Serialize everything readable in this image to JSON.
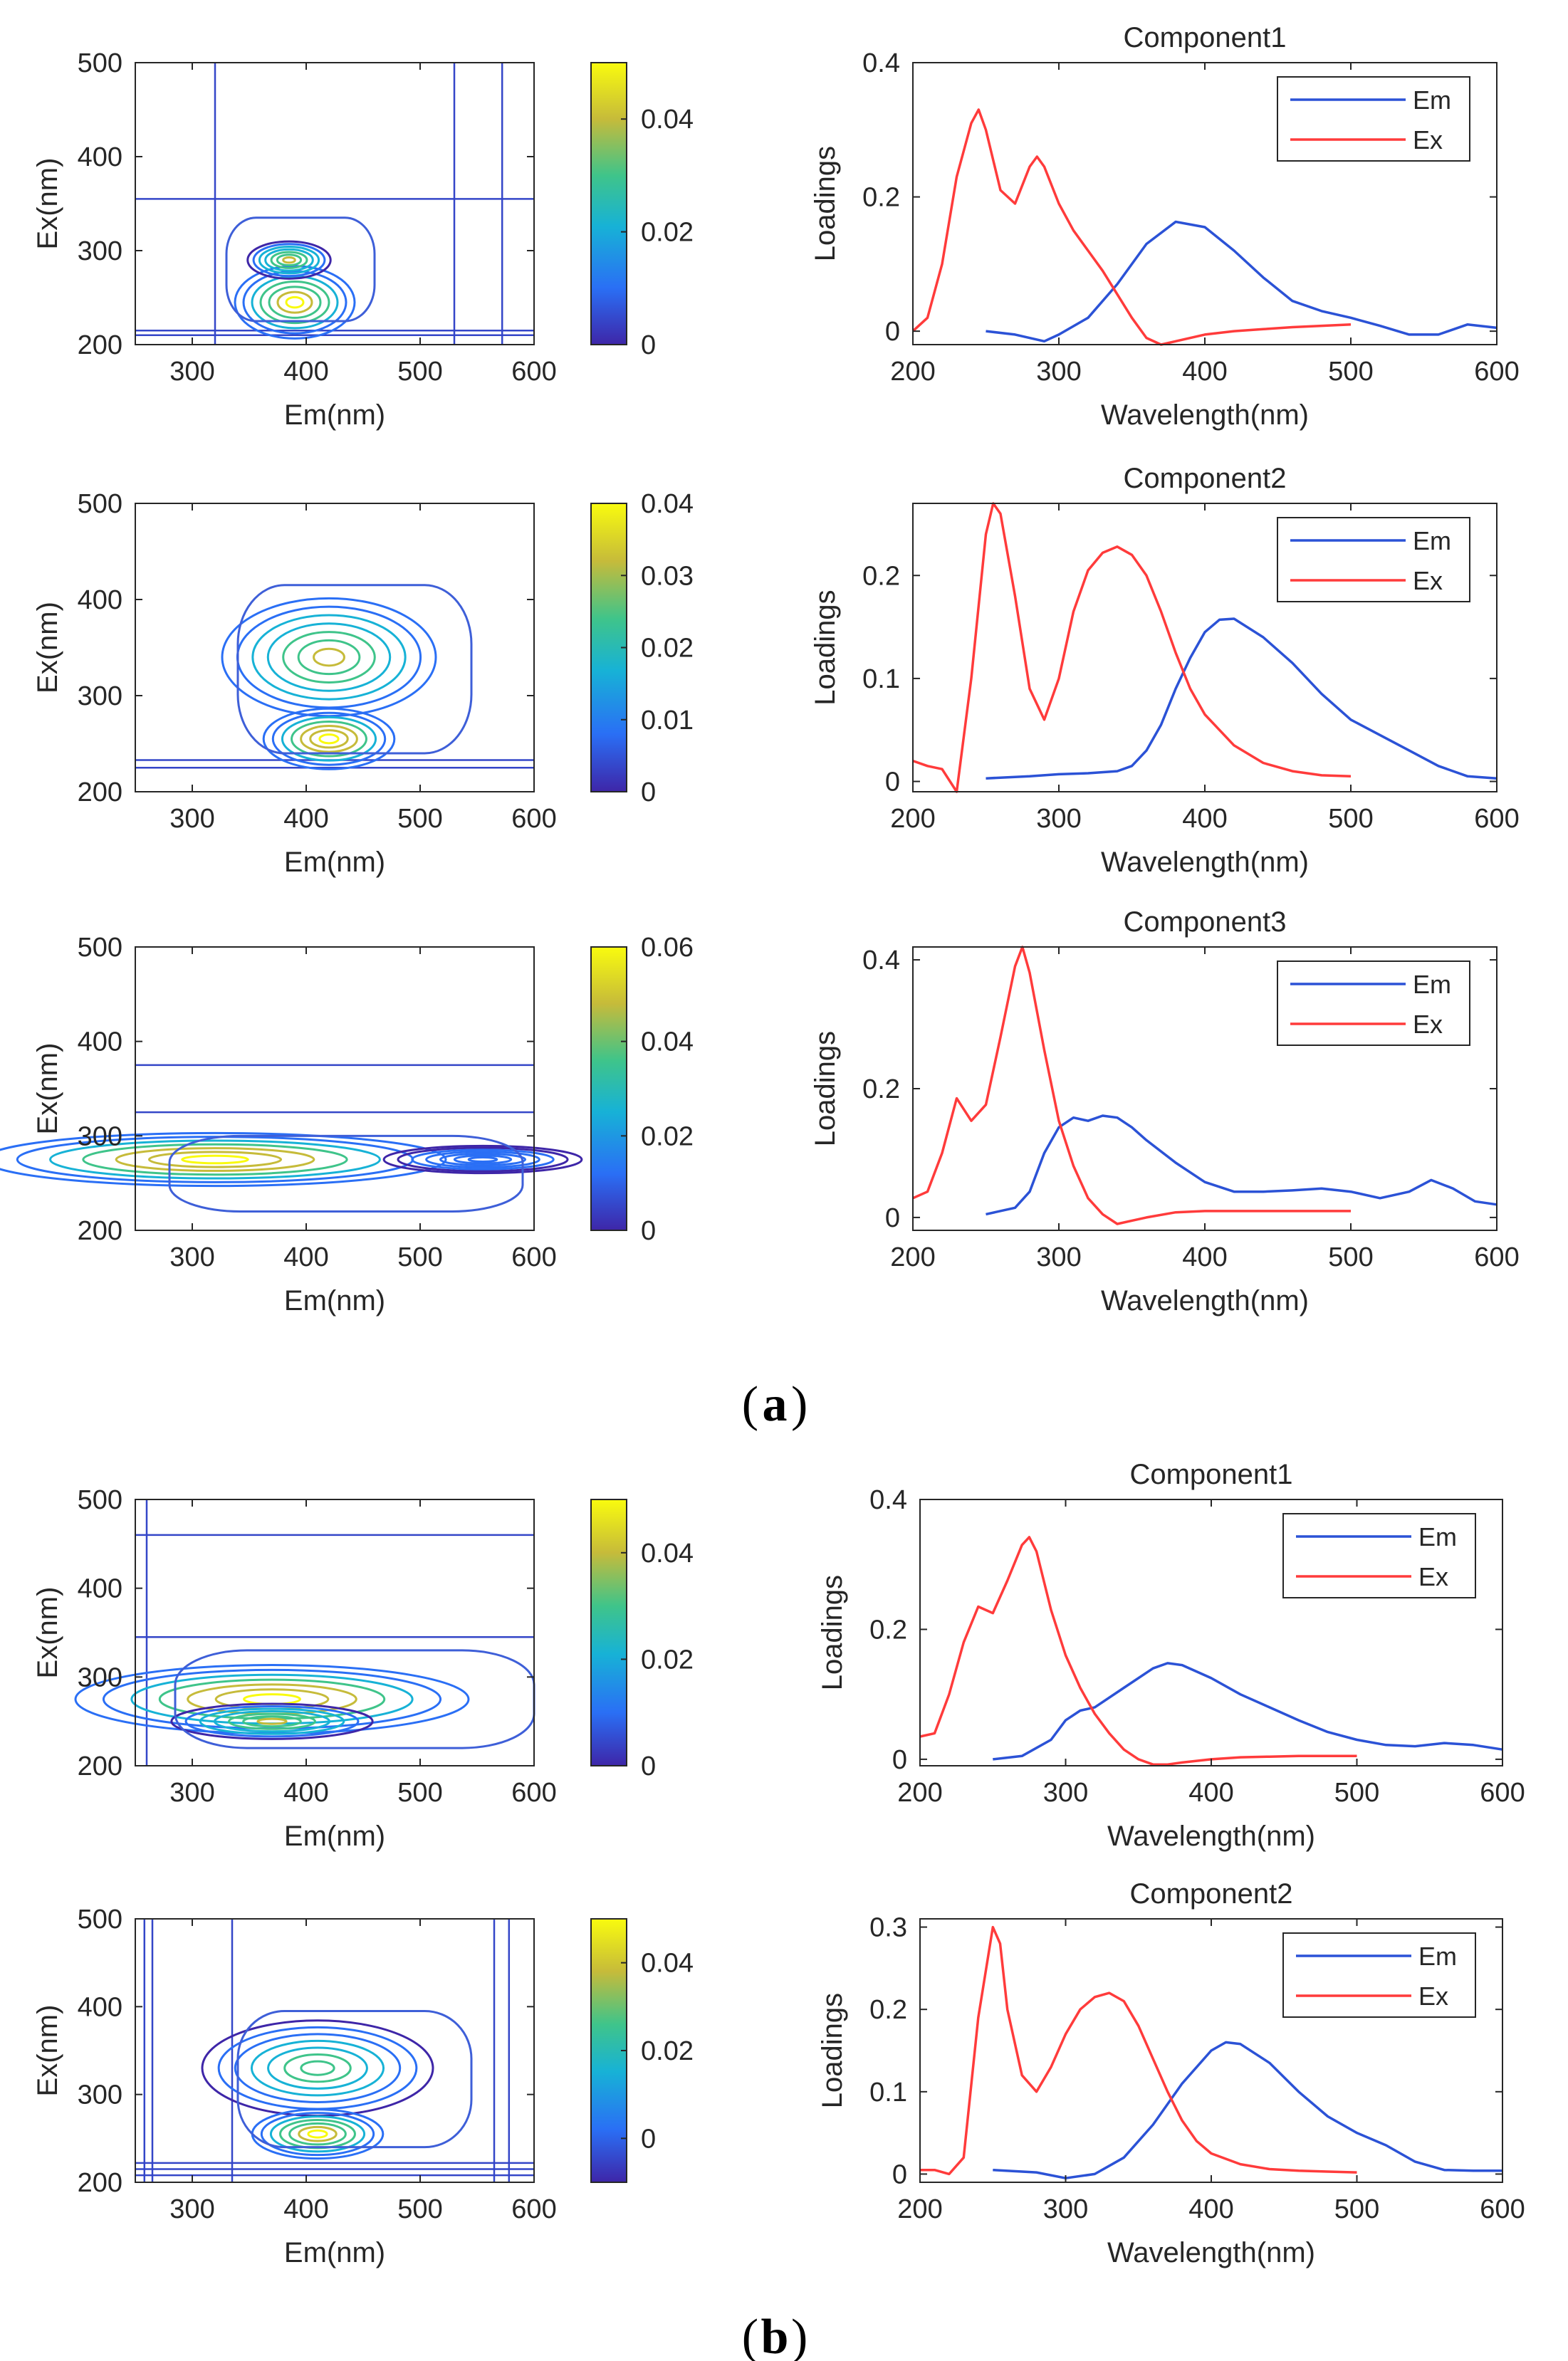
{
  "figure": {
    "labels": {
      "a": "a",
      "b": "b"
    },
    "colors": {
      "em": "#2b52d6",
      "ex": "#ff3b3b",
      "axis": "#262626",
      "cbar_stops": [
        "#3e26a8",
        "#2a6ff5",
        "#17b2d6",
        "#3fc48a",
        "#c6bb3a",
        "#f9fb0e"
      ]
    }
  },
  "chart_data": [
    {
      "type": "heatmap",
      "panel": "a",
      "row": 1,
      "xlabel": "Em(nm)",
      "ylabel": "Ex(nm)",
      "xlim": [
        250,
        600
      ],
      "ylim": [
        200,
        500
      ],
      "xticks": [
        300,
        400,
        500,
        600
      ],
      "yticks": [
        200,
        300,
        400,
        500
      ],
      "colorbar": {
        "range": [
          0,
          0.05
        ],
        "ticks": [
          0,
          0.02,
          0.04
        ]
      },
      "peaks": [
        {
          "em": 390,
          "ex": 245,
          "value": 0.045
        },
        {
          "em": 385,
          "ex": 290,
          "value": 0.035
        }
      ],
      "contour_extent": {
        "em": [
          330,
          460
        ],
        "ex": [
          225,
          335
        ]
      },
      "artifact_lines": {
        "h": [
          355,
          215,
          210
        ],
        "v": [
          320,
          530,
          572
        ]
      }
    },
    {
      "type": "line",
      "panel": "a",
      "row": 1,
      "title": "Component1",
      "xlabel": "Wavelength(nm)",
      "ylabel": "Loadings",
      "xlim": [
        200,
        600
      ],
      "ylim": [
        -0.02,
        0.4
      ],
      "xticks": [
        200,
        300,
        400,
        500,
        600
      ],
      "yticks": [
        0,
        0.2,
        0.4
      ],
      "ytick_labels": [
        "0",
        "0.2",
        "0.4"
      ],
      "legend": [
        "Em",
        "Ex"
      ],
      "legend_position": "top-right",
      "series": [
        {
          "name": "Em",
          "x": [
            250,
            270,
            290,
            300,
            320,
            340,
            360,
            380,
            400,
            420,
            440,
            460,
            480,
            500,
            520,
            540,
            560,
            580,
            600
          ],
          "y": [
            0,
            -0.005,
            -0.015,
            -0.005,
            0.02,
            0.07,
            0.13,
            0.163,
            0.155,
            0.12,
            0.08,
            0.045,
            0.03,
            0.02,
            0.008,
            -0.005,
            -0.005,
            0.01,
            0.005
          ]
        },
        {
          "name": "Ex",
          "x": [
            200,
            210,
            220,
            230,
            240,
            245,
            250,
            260,
            270,
            280,
            285,
            290,
            300,
            310,
            320,
            330,
            340,
            350,
            360,
            370,
            380,
            400,
            420,
            440,
            460,
            480,
            500
          ],
          "y": [
            0,
            0.02,
            0.1,
            0.23,
            0.31,
            0.33,
            0.3,
            0.21,
            0.19,
            0.245,
            0.26,
            0.245,
            0.19,
            0.15,
            0.12,
            0.09,
            0.055,
            0.02,
            -0.01,
            -0.02,
            -0.015,
            -0.005,
            0.0,
            0.003,
            0.006,
            0.008,
            0.01
          ]
        }
      ]
    },
    {
      "type": "heatmap",
      "panel": "a",
      "row": 2,
      "xlabel": "Em(nm)",
      "ylabel": "Ex(nm)",
      "xlim": [
        250,
        600
      ],
      "ylim": [
        200,
        500
      ],
      "xticks": [
        300,
        400,
        500,
        600
      ],
      "yticks": [
        200,
        300,
        400,
        500
      ],
      "colorbar": {
        "range": [
          0,
          0.04
        ],
        "ticks": [
          0,
          0.01,
          0.02,
          0.03,
          0.04
        ]
      },
      "peaks": [
        {
          "em": 420,
          "ex": 340,
          "value": 0.03
        },
        {
          "em": 420,
          "ex": 255,
          "value": 0.04
        }
      ],
      "contour_extent": {
        "em": [
          340,
          545
        ],
        "ex": [
          240,
          415
        ]
      },
      "artifact_lines": {
        "h": [
          233,
          225
        ],
        "v": []
      }
    },
    {
      "type": "line",
      "panel": "a",
      "row": 2,
      "title": "Component2",
      "xlabel": "Wavelength(nm)",
      "ylabel": "Loadings",
      "xlim": [
        200,
        600
      ],
      "ylim": [
        -0.01,
        0.27
      ],
      "xticks": [
        200,
        300,
        400,
        500,
        600
      ],
      "yticks": [
        0,
        0.1,
        0.2
      ],
      "ytick_labels": [
        "0",
        "0.1",
        "0.2"
      ],
      "legend": [
        "Em",
        "Ex"
      ],
      "legend_position": "top-right",
      "series": [
        {
          "name": "Em",
          "x": [
            250,
            280,
            300,
            320,
            340,
            350,
            360,
            370,
            380,
            390,
            400,
            410,
            420,
            440,
            460,
            480,
            500,
            520,
            540,
            560,
            580,
            600
          ],
          "y": [
            0.003,
            0.005,
            0.007,
            0.008,
            0.01,
            0.015,
            0.03,
            0.055,
            0.09,
            0.12,
            0.145,
            0.157,
            0.158,
            0.14,
            0.115,
            0.085,
            0.06,
            0.045,
            0.03,
            0.015,
            0.005,
            0.003
          ]
        },
        {
          "name": "Ex",
          "x": [
            200,
            210,
            220,
            230,
            240,
            250,
            255,
            260,
            270,
            280,
            290,
            300,
            310,
            320,
            330,
            340,
            350,
            360,
            370,
            380,
            390,
            400,
            420,
            440,
            460,
            480,
            500
          ],
          "y": [
            0.02,
            0.015,
            0.012,
            -0.01,
            0.1,
            0.24,
            0.27,
            0.26,
            0.18,
            0.09,
            0.06,
            0.1,
            0.165,
            0.205,
            0.222,
            0.228,
            0.22,
            0.2,
            0.165,
            0.125,
            0.09,
            0.065,
            0.035,
            0.018,
            0.01,
            0.006,
            0.005
          ]
        }
      ]
    },
    {
      "type": "heatmap",
      "panel": "a",
      "row": 3,
      "xlabel": "Em(nm)",
      "ylabel": "Ex(nm)",
      "xlim": [
        250,
        600
      ],
      "ylim": [
        200,
        500
      ],
      "xticks": [
        300,
        400,
        500,
        600
      ],
      "yticks": [
        200,
        300,
        400,
        500
      ],
      "colorbar": {
        "range": [
          0,
          0.06
        ],
        "ticks": [
          0,
          0.02,
          0.04,
          0.06
        ]
      },
      "peaks": [
        {
          "em": 320,
          "ex": 275,
          "value": 0.06
        },
        {
          "em": 555,
          "ex": 275,
          "value": 0.015
        }
      ],
      "contour_extent": {
        "em": [
          280,
          590
        ],
        "ex": [
          220,
          300
        ]
      },
      "artifact_lines": {
        "h": [
          375,
          325
        ],
        "v": []
      }
    },
    {
      "type": "line",
      "panel": "a",
      "row": 3,
      "title": "Component3",
      "xlabel": "Wavelength(nm)",
      "ylabel": "Loadings",
      "xlim": [
        200,
        600
      ],
      "ylim": [
        -0.02,
        0.42
      ],
      "xticks": [
        200,
        300,
        400,
        500,
        600
      ],
      "yticks": [
        0,
        0.2,
        0.4
      ],
      "ytick_labels": [
        "0",
        "0.2",
        "0.4"
      ],
      "legend": [
        "Em",
        "Ex"
      ],
      "legend_position": "top-right",
      "series": [
        {
          "name": "Em",
          "x": [
            250,
            270,
            280,
            290,
            300,
            310,
            320,
            330,
            340,
            350,
            360,
            380,
            400,
            420,
            440,
            460,
            480,
            500,
            520,
            540,
            555,
            570,
            585,
            600
          ],
          "y": [
            0.005,
            0.015,
            0.04,
            0.1,
            0.14,
            0.155,
            0.15,
            0.158,
            0.155,
            0.14,
            0.12,
            0.085,
            0.055,
            0.04,
            0.04,
            0.042,
            0.045,
            0.04,
            0.03,
            0.04,
            0.058,
            0.045,
            0.025,
            0.02
          ]
        },
        {
          "name": "Ex",
          "x": [
            200,
            210,
            220,
            230,
            240,
            250,
            260,
            270,
            275,
            280,
            290,
            300,
            310,
            320,
            330,
            340,
            350,
            360,
            380,
            400,
            420,
            440,
            460,
            480,
            500
          ],
          "y": [
            0.03,
            0.04,
            0.1,
            0.185,
            0.15,
            0.175,
            0.28,
            0.39,
            0.42,
            0.38,
            0.26,
            0.15,
            0.08,
            0.03,
            0.005,
            -0.01,
            -0.005,
            0.0,
            0.008,
            0.01,
            0.01,
            0.01,
            0.01,
            0.01,
            0.01
          ]
        }
      ]
    },
    {
      "type": "heatmap",
      "panel": "b",
      "row": 1,
      "xlabel": "Em(nm)",
      "ylabel": "Ex(nm)",
      "xlim": [
        250,
        600
      ],
      "ylim": [
        200,
        500
      ],
      "xticks": [
        300,
        400,
        500,
        600
      ],
      "yticks": [
        200,
        300,
        400,
        500
      ],
      "colorbar": {
        "range": [
          0,
          0.05
        ],
        "ticks": [
          0,
          0.02,
          0.04
        ]
      },
      "peaks": [
        {
          "em": 370,
          "ex": 275,
          "value": 0.05
        },
        {
          "em": 370,
          "ex": 250,
          "value": 0.035
        }
      ],
      "contour_extent": {
        "em": [
          285,
          600
        ],
        "ex": [
          220,
          330
        ]
      },
      "artifact_lines": {
        "h": [
          460,
          345
        ],
        "v": [
          260
        ]
      }
    },
    {
      "type": "line",
      "panel": "b",
      "row": 1,
      "title": "Component1",
      "xlabel": "Wavelength(nm)",
      "ylabel": "Loadings",
      "xlim": [
        200,
        600
      ],
      "ylim": [
        -0.01,
        0.4
      ],
      "xticks": [
        200,
        300,
        400,
        500,
        600
      ],
      "yticks": [
        0,
        0.2,
        0.4
      ],
      "ytick_labels": [
        "0",
        "0.2",
        "0.4"
      ],
      "legend": [
        "Em",
        "Ex"
      ],
      "legend_position": "top-right",
      "series": [
        {
          "name": "Em",
          "x": [
            250,
            270,
            290,
            300,
            310,
            320,
            340,
            360,
            370,
            380,
            400,
            420,
            440,
            460,
            480,
            500,
            520,
            540,
            560,
            580,
            600
          ],
          "y": [
            0.0,
            0.005,
            0.03,
            0.06,
            0.075,
            0.08,
            0.11,
            0.14,
            0.148,
            0.145,
            0.125,
            0.1,
            0.08,
            0.06,
            0.042,
            0.03,
            0.022,
            0.02,
            0.025,
            0.022,
            0.015
          ]
        },
        {
          "name": "Ex",
          "x": [
            200,
            210,
            220,
            230,
            240,
            250,
            260,
            270,
            275,
            280,
            290,
            300,
            310,
            320,
            330,
            340,
            350,
            360,
            370,
            380,
            400,
            420,
            440,
            460,
            480,
            500
          ],
          "y": [
            0.035,
            0.04,
            0.1,
            0.18,
            0.235,
            0.225,
            0.275,
            0.33,
            0.342,
            0.32,
            0.23,
            0.16,
            0.11,
            0.07,
            0.04,
            0.015,
            0.0,
            -0.008,
            -0.008,
            -0.005,
            0.0,
            0.003,
            0.004,
            0.005,
            0.005,
            0.005
          ]
        }
      ]
    },
    {
      "type": "heatmap",
      "panel": "b",
      "row": 2,
      "xlabel": "Em(nm)",
      "ylabel": "Ex(nm)",
      "xlim": [
        250,
        600
      ],
      "ylim": [
        200,
        500
      ],
      "xticks": [
        300,
        400,
        500,
        600
      ],
      "yticks": [
        200,
        300,
        400,
        500
      ],
      "colorbar": {
        "range": [
          -0.01,
          0.05
        ],
        "ticks": [
          0,
          0.02,
          0.04
        ]
      },
      "peaks": [
        {
          "em": 410,
          "ex": 330,
          "value": 0.03
        },
        {
          "em": 410,
          "ex": 255,
          "value": 0.045
        }
      ],
      "contour_extent": {
        "em": [
          340,
          545
        ],
        "ex": [
          240,
          395
        ]
      },
      "artifact_lines": {
        "h": [
          222,
          215,
          208
        ],
        "v": [
          258,
          265,
          335,
          565,
          578
        ]
      }
    },
    {
      "type": "line",
      "panel": "b",
      "row": 2,
      "title": "Component2",
      "xlabel": "Wavelength(nm)",
      "ylabel": "Loadings",
      "xlim": [
        200,
        600
      ],
      "ylim": [
        -0.01,
        0.31
      ],
      "xticks": [
        200,
        300,
        400,
        500,
        600
      ],
      "yticks": [
        0,
        0.1,
        0.2,
        0.3
      ],
      "ytick_labels": [
        "0",
        "0.1",
        "0.2",
        "0.3"
      ],
      "legend": [
        "Em",
        "Ex"
      ],
      "legend_position": "top-right",
      "series": [
        {
          "name": "Em",
          "x": [
            250,
            280,
            300,
            320,
            340,
            360,
            380,
            400,
            410,
            420,
            440,
            460,
            480,
            500,
            520,
            540,
            560,
            580,
            600
          ],
          "y": [
            0.005,
            0.002,
            -0.005,
            0.0,
            0.02,
            0.06,
            0.11,
            0.15,
            0.16,
            0.158,
            0.135,
            0.1,
            0.07,
            0.05,
            0.035,
            0.015,
            0.005,
            0.004,
            0.004
          ]
        },
        {
          "name": "Ex",
          "x": [
            200,
            210,
            220,
            230,
            240,
            250,
            255,
            260,
            270,
            280,
            290,
            300,
            310,
            320,
            330,
            340,
            350,
            360,
            370,
            380,
            390,
            400,
            420,
            440,
            460,
            480,
            500
          ],
          "y": [
            0.005,
            0.005,
            0.0,
            0.02,
            0.19,
            0.3,
            0.28,
            0.2,
            0.12,
            0.1,
            0.13,
            0.17,
            0.2,
            0.215,
            0.22,
            0.21,
            0.18,
            0.14,
            0.1,
            0.065,
            0.04,
            0.025,
            0.012,
            0.006,
            0.004,
            0.003,
            0.002
          ]
        }
      ]
    }
  ]
}
